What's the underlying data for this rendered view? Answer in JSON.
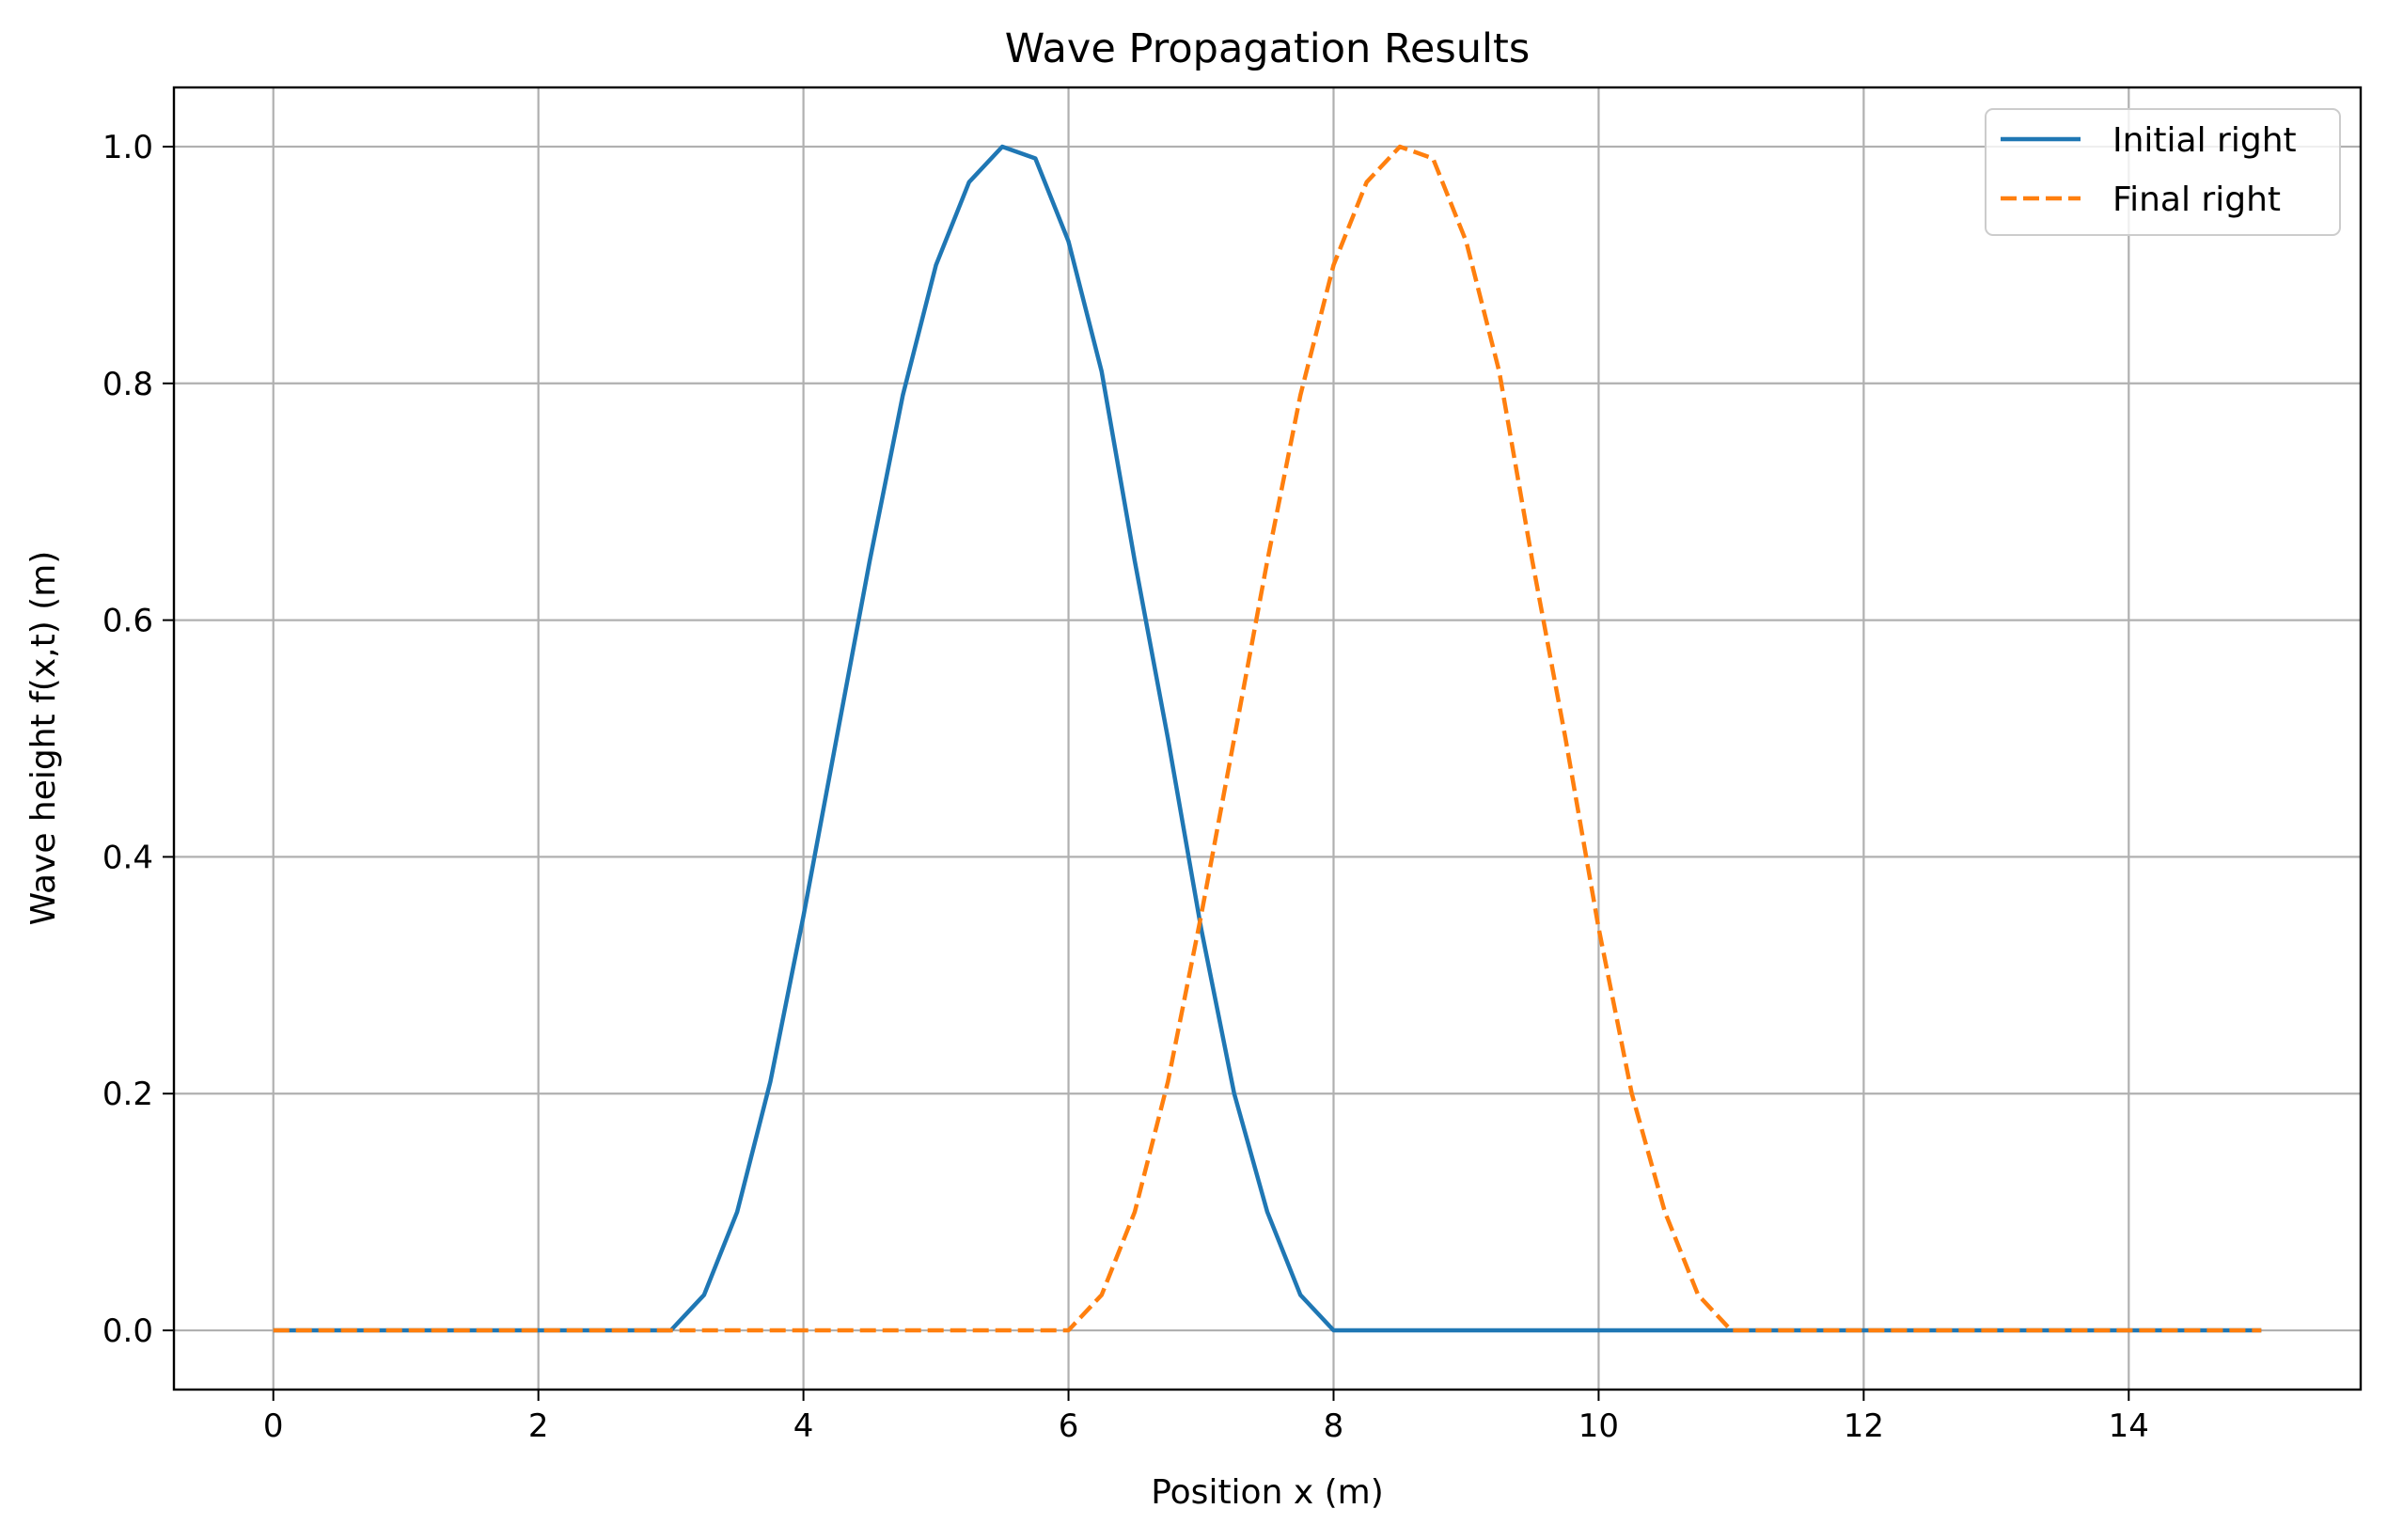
{
  "chart_data": {
    "type": "line",
    "title": "Wave Propagation Results",
    "xlabel": "Position x (m)",
    "ylabel": "Wave height f(x,t) (m)",
    "xlim": [
      -0.75,
      15.75
    ],
    "ylim": [
      -0.05,
      1.05
    ],
    "xticks": [
      0,
      2,
      4,
      6,
      8,
      10,
      12,
      14
    ],
    "xtick_labels": [
      "0",
      "2",
      "4",
      "6",
      "8",
      "10",
      "12",
      "14"
    ],
    "yticks": [
      0.0,
      0.2,
      0.4,
      0.6,
      0.8,
      1.0
    ],
    "ytick_labels": [
      "0.0",
      "0.2",
      "0.4",
      "0.6",
      "0.8",
      "1.0"
    ],
    "grid": true,
    "legend_position": "top-right",
    "series": [
      {
        "name": "Initial right",
        "color": "#1f77b4",
        "style": "solid",
        "x": [
          0,
          3.0,
          3.25,
          3.5,
          3.75,
          4.0,
          4.25,
          4.5,
          4.75,
          5.0,
          5.25,
          5.5,
          5.75,
          6.0,
          6.25,
          6.5,
          6.75,
          7.0,
          7.25,
          7.5,
          7.75,
          8.0,
          15.0
        ],
        "y": [
          0,
          0,
          0.03,
          0.1,
          0.21,
          0.35,
          0.5,
          0.65,
          0.79,
          0.9,
          0.97,
          1.0,
          0.99,
          0.92,
          0.81,
          0.65,
          0.5,
          0.34,
          0.2,
          0.1,
          0.03,
          0,
          0
        ]
      },
      {
        "name": "Final right",
        "color": "#ff7f0e",
        "style": "dashed",
        "x": [
          0,
          6.0,
          6.25,
          6.5,
          6.75,
          7.0,
          7.25,
          7.5,
          7.75,
          8.0,
          8.25,
          8.5,
          8.75,
          9.0,
          9.25,
          9.5,
          9.75,
          10.0,
          10.25,
          10.5,
          10.75,
          11.0,
          15.0
        ],
        "y": [
          0,
          0,
          0.03,
          0.1,
          0.21,
          0.35,
          0.5,
          0.65,
          0.79,
          0.9,
          0.97,
          1.0,
          0.99,
          0.92,
          0.81,
          0.65,
          0.5,
          0.34,
          0.2,
          0.1,
          0.03,
          0,
          0
        ]
      }
    ]
  }
}
